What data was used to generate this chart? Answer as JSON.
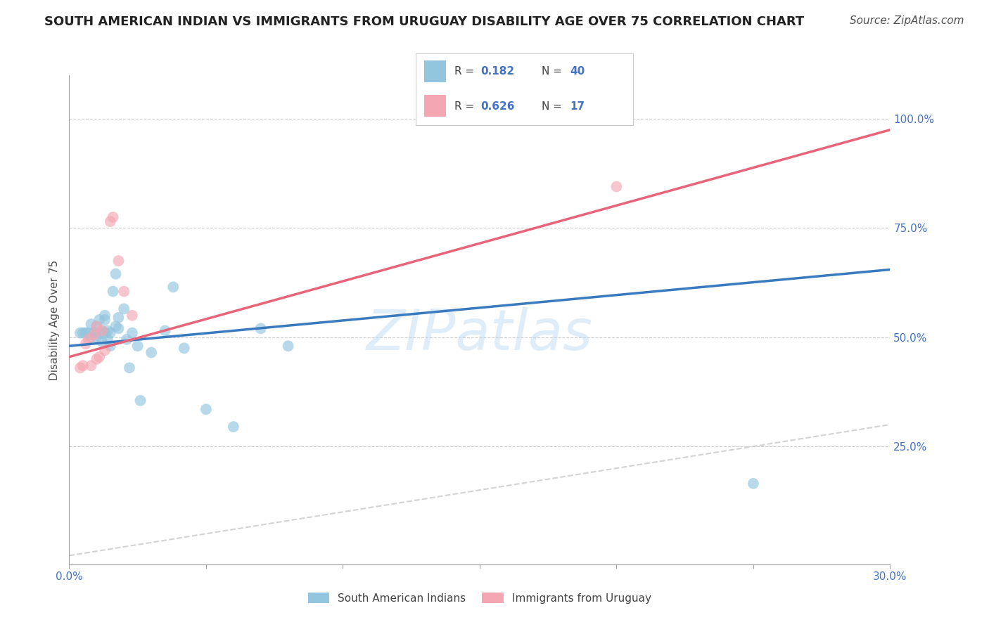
{
  "title": "SOUTH AMERICAN INDIAN VS IMMIGRANTS FROM URUGUAY DISABILITY AGE OVER 75 CORRELATION CHART",
  "source": "Source: ZipAtlas.com",
  "ylabel": "Disability Age Over 75",
  "xlim": [
    0.0,
    0.3
  ],
  "ylim": [
    -0.02,
    1.1
  ],
  "xticks": [
    0.0,
    0.05,
    0.1,
    0.15,
    0.2,
    0.25,
    0.3
  ],
  "xticklabels": [
    "0.0%",
    "",
    "",
    "",
    "",
    "",
    "30.0%"
  ],
  "yticks": [
    0.25,
    0.5,
    0.75,
    1.0
  ],
  "yticklabels": [
    "25.0%",
    "50.0%",
    "75.0%",
    "100.0%"
  ],
  "legend_blue_r_val": "0.182",
  "legend_blue_n_val": "40",
  "legend_pink_r_val": "0.626",
  "legend_pink_n_val": "17",
  "legend_label_blue": "South American Indians",
  "legend_label_pink": "Immigrants from Uruguay",
  "blue_color": "#92c5de",
  "pink_color": "#f4a7b2",
  "blue_line_color": "#3a7bbf",
  "pink_line_color": "#e8647a",
  "ref_line_color": "#c8c8c8",
  "tick_color": "#4472c4",
  "scatter_blue_x": [
    0.004,
    0.005,
    0.006,
    0.007,
    0.008,
    0.008,
    0.009,
    0.01,
    0.01,
    0.011,
    0.011,
    0.012,
    0.012,
    0.013,
    0.013,
    0.013,
    0.014,
    0.014,
    0.015,
    0.015,
    0.016,
    0.017,
    0.017,
    0.018,
    0.018,
    0.02,
    0.021,
    0.022,
    0.023,
    0.025,
    0.026,
    0.03,
    0.035,
    0.038,
    0.042,
    0.05,
    0.06,
    0.07,
    0.08,
    0.25
  ],
  "scatter_blue_y": [
    0.51,
    0.51,
    0.51,
    0.51,
    0.5,
    0.53,
    0.51,
    0.5,
    0.525,
    0.51,
    0.54,
    0.515,
    0.49,
    0.51,
    0.54,
    0.55,
    0.495,
    0.515,
    0.48,
    0.51,
    0.605,
    0.525,
    0.645,
    0.52,
    0.545,
    0.565,
    0.495,
    0.43,
    0.51,
    0.48,
    0.355,
    0.465,
    0.515,
    0.615,
    0.475,
    0.335,
    0.295,
    0.52,
    0.48,
    0.165
  ],
  "scatter_pink_x": [
    0.004,
    0.005,
    0.006,
    0.007,
    0.008,
    0.009,
    0.01,
    0.01,
    0.011,
    0.012,
    0.013,
    0.015,
    0.016,
    0.018,
    0.02,
    0.023,
    0.2
  ],
  "scatter_pink_y": [
    0.43,
    0.435,
    0.485,
    0.495,
    0.435,
    0.505,
    0.45,
    0.525,
    0.455,
    0.515,
    0.47,
    0.765,
    0.775,
    0.675,
    0.605,
    0.55,
    0.845
  ],
  "blue_trend_x": [
    0.0,
    0.3
  ],
  "blue_trend_y": [
    0.48,
    0.655
  ],
  "pink_trend_x": [
    0.0,
    0.3
  ],
  "pink_trend_y": [
    0.455,
    0.975
  ],
  "ref_line_x": [
    0.0,
    0.3
  ],
  "ref_line_y": [
    0.0,
    0.3
  ],
  "watermark": "ZIPatlas",
  "title_fontsize": 13,
  "axis_label_fontsize": 11,
  "tick_fontsize": 11,
  "source_fontsize": 11
}
